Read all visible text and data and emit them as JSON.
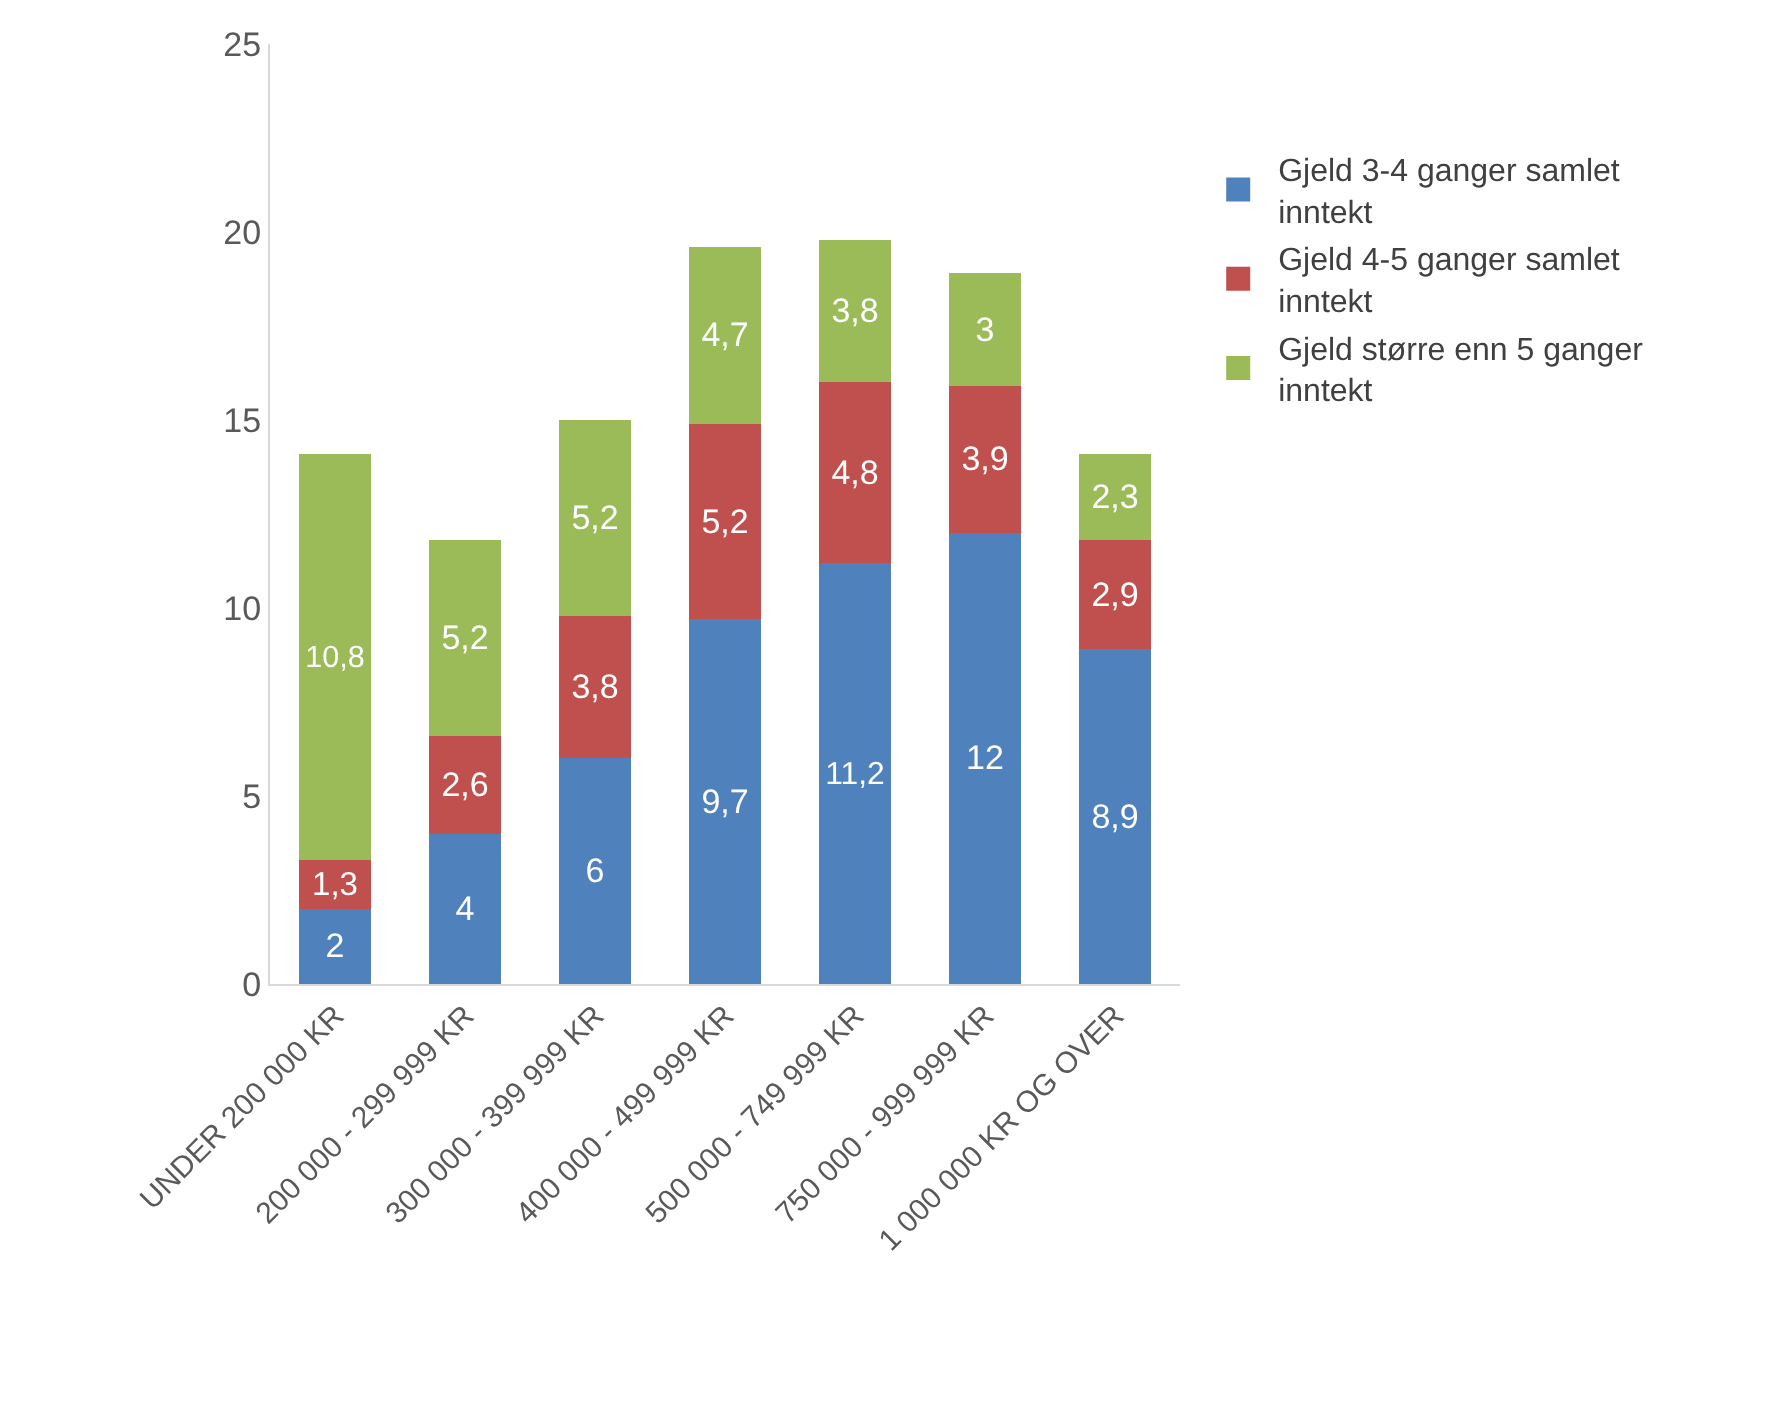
{
  "chart_data": {
    "type": "bar",
    "stacked": true,
    "categories": [
      "UNDER 200 000 KR",
      "200 000 - 299 999 KR",
      "300 000 - 399 999 KR",
      "400 000 - 499 999 KR",
      "500 000 - 749 999 KR",
      "750 000 - 999 999 KR",
      "1 000 000 KR OG OVER"
    ],
    "series": [
      {
        "name": "Gjeld 3-4 ganger samlet inntekt",
        "color": "#4f81bd",
        "values": [
          2,
          4,
          6,
          9.7,
          11.2,
          12,
          8.9
        ],
        "value_labels": [
          "2",
          "4",
          "6",
          "9,7",
          "11,2",
          "12",
          "8,9"
        ]
      },
      {
        "name": "Gjeld 4-5 ganger samlet inntekt",
        "color": "#c0504d",
        "values": [
          1.3,
          2.6,
          3.8,
          5.2,
          4.8,
          3.9,
          2.9
        ],
        "value_labels": [
          "1,3",
          "2,6",
          "3,8",
          "5,2",
          "4,8",
          "3,9",
          "2,9"
        ]
      },
      {
        "name": "Gjeld større enn 5 ganger inntekt",
        "color": "#9bbb59",
        "values": [
          10.8,
          5.2,
          5.2,
          4.7,
          3.8,
          3,
          2.3
        ],
        "value_labels": [
          "10,8",
          "5,2",
          "5,2",
          "4,7",
          "3,8",
          "3",
          "2,3"
        ]
      }
    ],
    "ylim": [
      0,
      25
    ],
    "yticks": [
      0,
      5,
      10,
      15,
      20,
      25
    ],
    "legend": "right"
  }
}
